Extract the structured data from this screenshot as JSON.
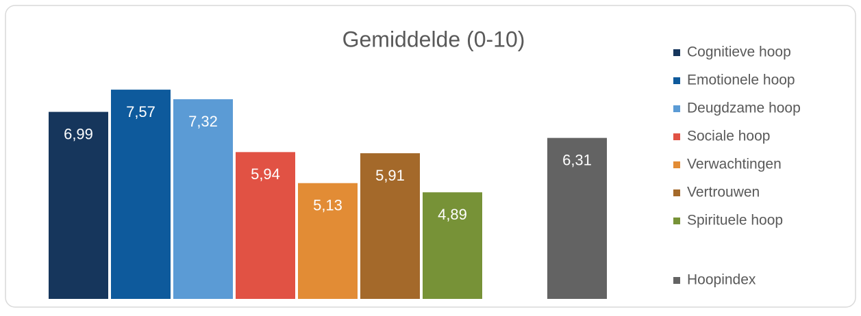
{
  "chart_data": {
    "type": "bar",
    "title": "Gemiddelde (0-10)",
    "ylim": [
      2,
      8
    ],
    "series": [
      {
        "name": "Cognitieve hoop",
        "color": "#16365c",
        "values": [
          6.99
        ],
        "value_labels": [
          "6,99"
        ]
      },
      {
        "name": "Emotionele hoop",
        "color": "#0e5a9c",
        "values": [
          7.57
        ],
        "value_labels": [
          "7,57"
        ]
      },
      {
        "name": "Deugdzame hoop",
        "color": "#5b9bd5",
        "values": [
          7.32
        ],
        "value_labels": [
          "7,32"
        ]
      },
      {
        "name": "Sociale hoop",
        "color": "#e15244",
        "values": [
          5.94
        ],
        "value_labels": [
          "5,94"
        ]
      },
      {
        "name": "Verwachtingen",
        "color": "#e28c35",
        "values": [
          5.13
        ],
        "value_labels": [
          "5,13"
        ]
      },
      {
        "name": "Vertrouwen",
        "color": "#a4692a",
        "values": [
          5.91
        ],
        "value_labels": [
          "5,91"
        ]
      },
      {
        "name": "Spirituele hoop",
        "color": "#779237",
        "values": [
          4.89
        ],
        "value_labels": [
          "4,89"
        ]
      },
      {
        "name": "Hoopindex",
        "color": "#636363",
        "values": [
          6.31
        ],
        "value_labels": [
          "6,31"
        ]
      }
    ]
  }
}
